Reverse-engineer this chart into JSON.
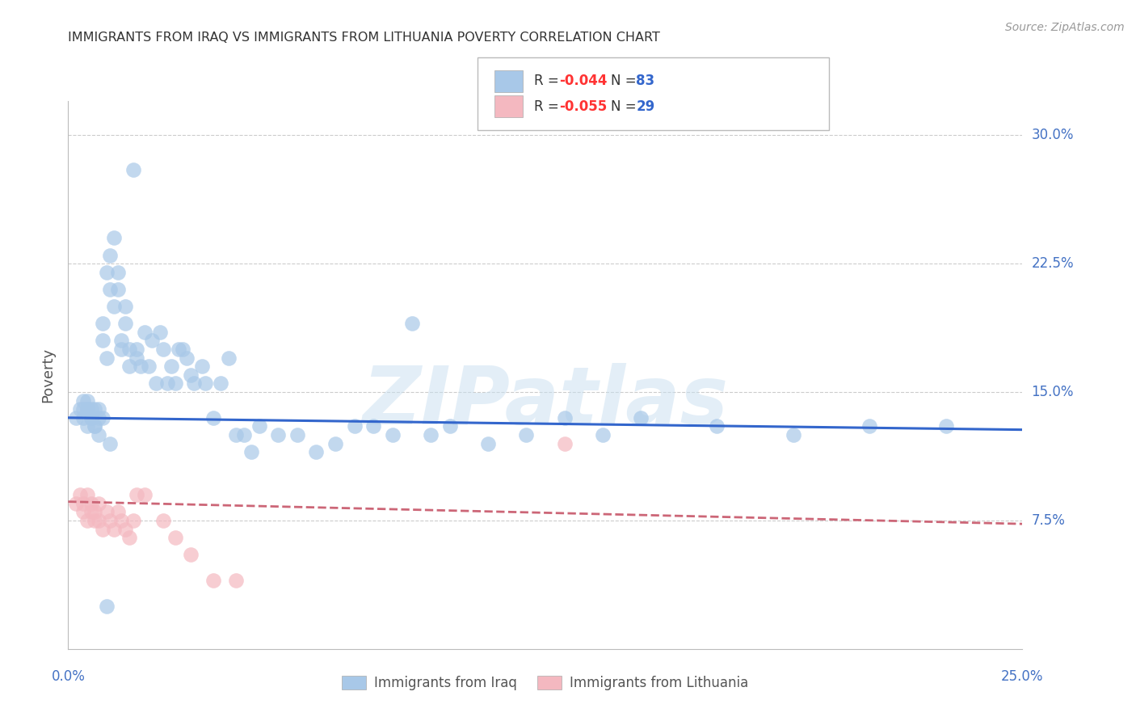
{
  "title": "IMMIGRANTS FROM IRAQ VS IMMIGRANTS FROM LITHUANIA POVERTY CORRELATION CHART",
  "source": "Source: ZipAtlas.com",
  "ylabel": "Poverty",
  "ytick_labels": [
    "7.5%",
    "15.0%",
    "22.5%",
    "30.0%"
  ],
  "ytick_values": [
    0.075,
    0.15,
    0.225,
    0.3
  ],
  "xlim": [
    0.0,
    0.25
  ],
  "ylim": [
    0.0,
    0.32
  ],
  "iraq_color": "#a8c8e8",
  "lith_color": "#f4b8c0",
  "iraq_R": "-0.044",
  "iraq_N": "83",
  "lith_R": "-0.055",
  "lith_N": "29",
  "iraq_scatter_x": [
    0.002,
    0.003,
    0.004,
    0.004,
    0.005,
    0.005,
    0.005,
    0.006,
    0.006,
    0.007,
    0.007,
    0.008,
    0.008,
    0.009,
    0.009,
    0.01,
    0.01,
    0.011,
    0.011,
    0.012,
    0.012,
    0.013,
    0.013,
    0.014,
    0.014,
    0.015,
    0.015,
    0.016,
    0.016,
    0.017,
    0.018,
    0.018,
    0.019,
    0.02,
    0.021,
    0.022,
    0.023,
    0.024,
    0.025,
    0.026,
    0.027,
    0.028,
    0.029,
    0.03,
    0.031,
    0.032,
    0.033,
    0.035,
    0.036,
    0.038,
    0.04,
    0.042,
    0.044,
    0.046,
    0.048,
    0.05,
    0.055,
    0.06,
    0.065,
    0.07,
    0.075,
    0.08,
    0.085,
    0.09,
    0.095,
    0.1,
    0.11,
    0.12,
    0.13,
    0.14,
    0.15,
    0.17,
    0.19,
    0.21,
    0.23,
    0.004,
    0.005,
    0.006,
    0.007,
    0.008,
    0.009,
    0.01,
    0.011
  ],
  "iraq_scatter_y": [
    0.135,
    0.14,
    0.135,
    0.145,
    0.13,
    0.14,
    0.145,
    0.135,
    0.14,
    0.13,
    0.14,
    0.135,
    0.14,
    0.18,
    0.19,
    0.17,
    0.22,
    0.21,
    0.23,
    0.2,
    0.24,
    0.22,
    0.21,
    0.175,
    0.18,
    0.19,
    0.2,
    0.175,
    0.165,
    0.28,
    0.175,
    0.17,
    0.165,
    0.185,
    0.165,
    0.18,
    0.155,
    0.185,
    0.175,
    0.155,
    0.165,
    0.155,
    0.175,
    0.175,
    0.17,
    0.16,
    0.155,
    0.165,
    0.155,
    0.135,
    0.155,
    0.17,
    0.125,
    0.125,
    0.115,
    0.13,
    0.125,
    0.125,
    0.115,
    0.12,
    0.13,
    0.13,
    0.125,
    0.19,
    0.125,
    0.13,
    0.12,
    0.125,
    0.135,
    0.125,
    0.135,
    0.13,
    0.125,
    0.13,
    0.13,
    0.14,
    0.14,
    0.135,
    0.13,
    0.125,
    0.135,
    0.025,
    0.12
  ],
  "lith_scatter_x": [
    0.002,
    0.003,
    0.004,
    0.004,
    0.005,
    0.005,
    0.006,
    0.006,
    0.007,
    0.007,
    0.008,
    0.008,
    0.009,
    0.01,
    0.011,
    0.012,
    0.013,
    0.014,
    0.015,
    0.016,
    0.017,
    0.018,
    0.02,
    0.025,
    0.028,
    0.032,
    0.038,
    0.044,
    0.13
  ],
  "lith_scatter_y": [
    0.085,
    0.09,
    0.085,
    0.08,
    0.09,
    0.075,
    0.08,
    0.085,
    0.075,
    0.08,
    0.075,
    0.085,
    0.07,
    0.08,
    0.075,
    0.07,
    0.08,
    0.075,
    0.07,
    0.065,
    0.075,
    0.09,
    0.09,
    0.075,
    0.065,
    0.055,
    0.04,
    0.04,
    0.12
  ],
  "iraq_trend_x": [
    0.0,
    0.25
  ],
  "iraq_trend_y": [
    0.135,
    0.128
  ],
  "lith_trend_x": [
    0.0,
    0.25
  ],
  "lith_trend_y": [
    0.086,
    0.073
  ],
  "watermark": "ZIPatlas",
  "background_color": "#ffffff",
  "grid_color": "#cccccc",
  "title_color": "#333333",
  "tick_color": "#4472c4",
  "r_color": "#ff3333",
  "n_color": "#3366cc"
}
